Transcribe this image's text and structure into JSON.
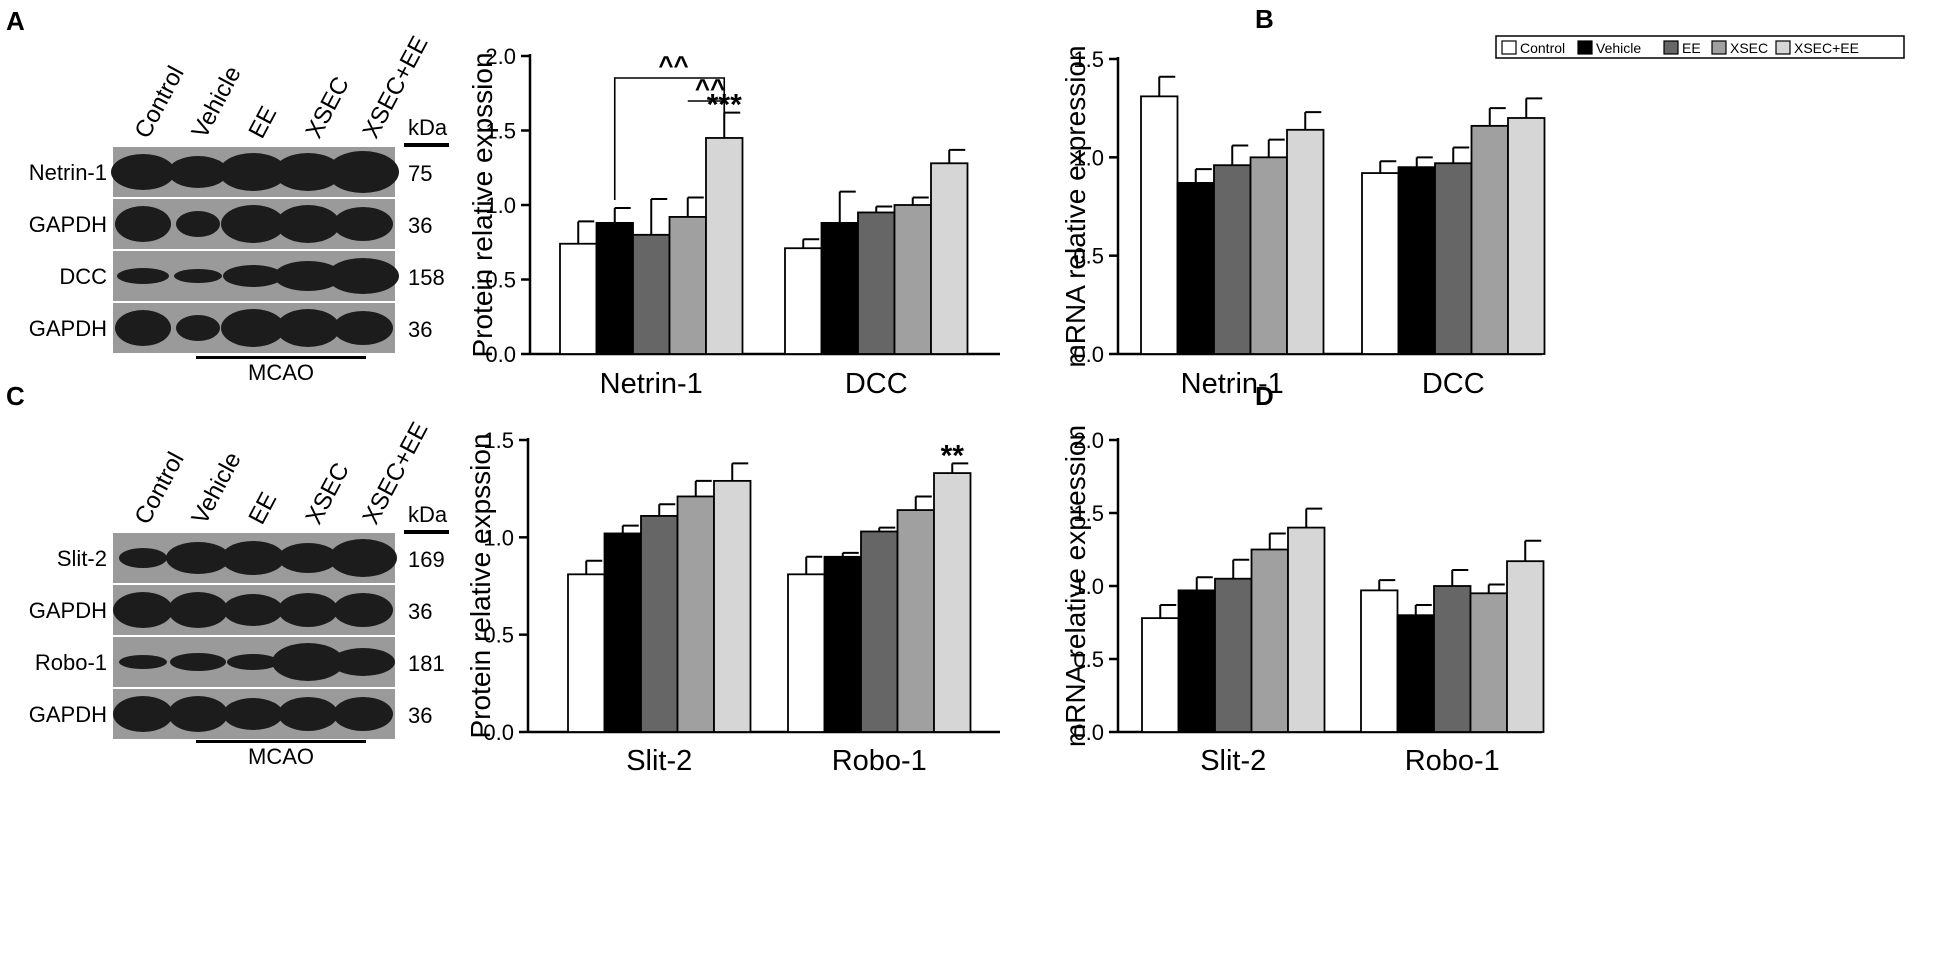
{
  "panel_labels": {
    "a": "A",
    "b": "B",
    "c": "C",
    "d": "D"
  },
  "colors": {
    "Control": "#ffffff",
    "Vehicle": "#000000",
    "EE": "#666666",
    "XSEC": "#a0a0a0",
    "XSEC+EE": "#d6d6d6"
  },
  "blots": [
    {
      "lanes": [
        "Control",
        "Vehicle",
        "EE",
        "XSEC",
        "XSEC+EE"
      ],
      "kda_header": "kDa",
      "footer": "MCAO",
      "rows": [
        {
          "name": "Netrin-1",
          "kda": "75"
        },
        {
          "name": "GAPDH",
          "kda": "36"
        },
        {
          "name": "DCC",
          "kda": "158"
        },
        {
          "name": "GAPDH",
          "kda": "36"
        }
      ]
    },
    {
      "lanes": [
        "Control",
        "Vehicle",
        "EE",
        "XSEC",
        "XSEC+EE"
      ],
      "kda_header": "kDa",
      "footer": "MCAO",
      "rows": [
        {
          "name": "Slit-2",
          "kda": "169"
        },
        {
          "name": "GAPDH",
          "kda": "36"
        },
        {
          "name": "Robo-1",
          "kda": "181"
        },
        {
          "name": "GAPDH",
          "kda": "36"
        }
      ]
    }
  ],
  "chart_data": [
    {
      "type": "bar",
      "panel": "A",
      "ylabel": "Protein relative expssion",
      "ylim": [
        0,
        2.0
      ],
      "yticks": [
        "0.0",
        "0.5",
        "1.0",
        "1.5",
        "2.0"
      ],
      "categories": [
        "Netrin-1",
        "DCC"
      ],
      "series": [
        {
          "name": "Control",
          "values": [
            0.74,
            0.71
          ],
          "errors": [
            0.15,
            0.06
          ]
        },
        {
          "name": "Vehicle",
          "values": [
            0.88,
            0.88
          ],
          "errors": [
            0.1,
            0.21
          ]
        },
        {
          "name": "EE",
          "values": [
            0.8,
            0.95
          ],
          "errors": [
            0.24,
            0.04
          ]
        },
        {
          "name": "XSEC",
          "values": [
            0.92,
            1.0
          ],
          "errors": [
            0.13,
            0.05
          ]
        },
        {
          "name": "XSEC+EE",
          "values": [
            1.45,
            1.28
          ],
          "errors": [
            0.17,
            0.09
          ]
        }
      ],
      "annotations": [
        {
          "text": "***",
          "category": 0,
          "series": 4
        },
        {
          "text": "^^",
          "category": 0,
          "from_series": 1,
          "to_series": 4
        },
        {
          "text": "^^",
          "category": 0,
          "from_series": 3,
          "to_series": 4
        }
      ]
    },
    {
      "type": "bar",
      "panel": "B",
      "ylabel": "mRNA relative expression",
      "ylim": [
        0,
        1.5
      ],
      "yticks": [
        "0.0",
        "0.5",
        "1.0",
        "1.5"
      ],
      "categories": [
        "Netrin-1",
        "DCC"
      ],
      "legend": [
        "Control",
        "Vehicle",
        "EE",
        "XSEC",
        "XSEC+EE"
      ],
      "legend_position": "top-right",
      "series": [
        {
          "name": "Control",
          "values": [
            1.31,
            0.92
          ],
          "errors": [
            0.1,
            0.06
          ]
        },
        {
          "name": "Vehicle",
          "values": [
            0.87,
            0.95
          ],
          "errors": [
            0.07,
            0.05
          ]
        },
        {
          "name": "EE",
          "values": [
            0.96,
            0.97
          ],
          "errors": [
            0.1,
            0.08
          ]
        },
        {
          "name": "XSEC",
          "values": [
            1.0,
            1.16
          ],
          "errors": [
            0.09,
            0.09
          ]
        },
        {
          "name": "XSEC+EE",
          "values": [
            1.14,
            1.2
          ],
          "errors": [
            0.09,
            0.1
          ]
        }
      ],
      "annotations": []
    },
    {
      "type": "bar",
      "panel": "C",
      "ylabel": "Protein relative expssion",
      "ylim": [
        0,
        1.5
      ],
      "yticks": [
        "0.0",
        "0.5",
        "1.0",
        "1.5"
      ],
      "categories": [
        "Slit-2",
        "Robo-1"
      ],
      "series": [
        {
          "name": "Control",
          "values": [
            0.81,
            0.81
          ],
          "errors": [
            0.07,
            0.09
          ]
        },
        {
          "name": "Vehicle",
          "values": [
            1.02,
            0.9
          ],
          "errors": [
            0.04,
            0.02
          ]
        },
        {
          "name": "EE",
          "values": [
            1.11,
            1.03
          ],
          "errors": [
            0.06,
            0.02
          ]
        },
        {
          "name": "XSEC",
          "values": [
            1.21,
            1.14
          ],
          "errors": [
            0.08,
            0.07
          ]
        },
        {
          "name": "XSEC+EE",
          "values": [
            1.29,
            1.33
          ],
          "errors": [
            0.09,
            0.05
          ]
        }
      ],
      "annotations": [
        {
          "text": "**",
          "category": 1,
          "series": 4
        }
      ]
    },
    {
      "type": "bar",
      "panel": "D",
      "ylabel": "mRNA relative expression",
      "ylim": [
        0,
        2.0
      ],
      "yticks": [
        "0.0",
        "0.5",
        "1.0",
        "1.5",
        "2.0"
      ],
      "categories": [
        "Slit-2",
        "Robo-1"
      ],
      "series": [
        {
          "name": "Control",
          "values": [
            0.78,
            0.97
          ],
          "errors": [
            0.09,
            0.07
          ]
        },
        {
          "name": "Vehicle",
          "values": [
            0.97,
            0.8
          ],
          "errors": [
            0.09,
            0.07
          ]
        },
        {
          "name": "EE",
          "values": [
            1.05,
            1.0
          ],
          "errors": [
            0.13,
            0.11
          ]
        },
        {
          "name": "XSEC",
          "values": [
            1.25,
            0.95
          ],
          "errors": [
            0.11,
            0.06
          ]
        },
        {
          "name": "XSEC+EE",
          "values": [
            1.4,
            1.17
          ],
          "errors": [
            0.13,
            0.14
          ]
        }
      ],
      "annotations": []
    }
  ]
}
